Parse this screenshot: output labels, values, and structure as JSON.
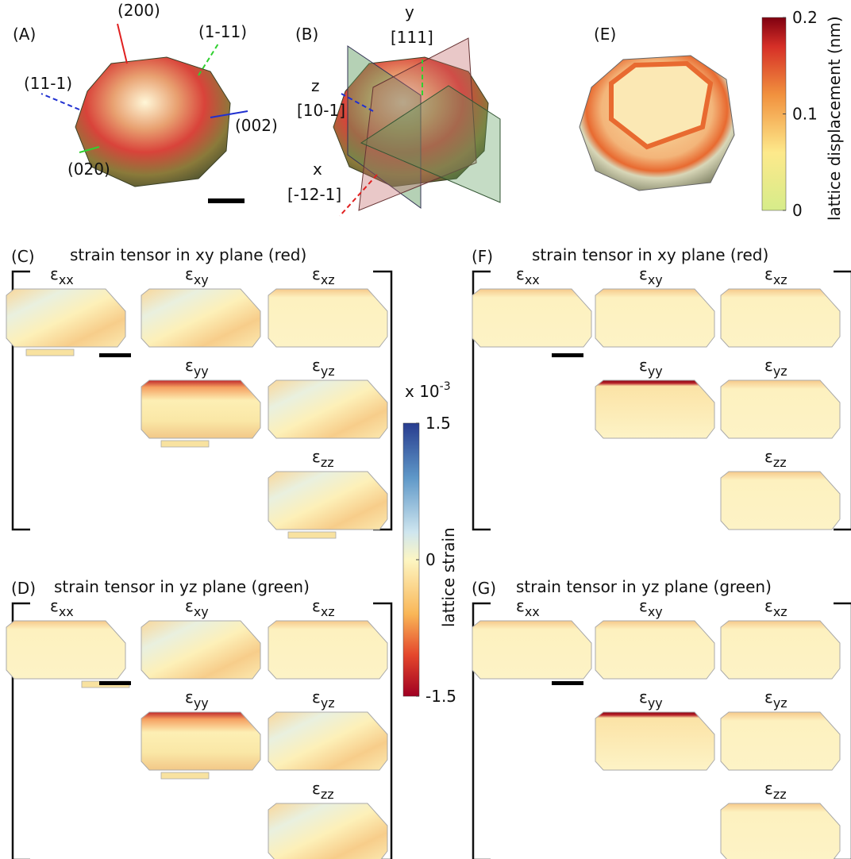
{
  "panel_a": {
    "label": "(A)",
    "axes": [
      "(200)",
      "(1-11)",
      "(11-1)",
      "(002)",
      "(020)"
    ]
  },
  "panel_b": {
    "label": "(B)",
    "axes": [
      {
        "name": "y",
        "direction": "[111]"
      },
      {
        "name": "z",
        "direction": "[10-1]"
      },
      {
        "name": "x",
        "direction": "[-12-1]"
      }
    ]
  },
  "panel_e": {
    "label": "(E)"
  },
  "displacement_colorbar": {
    "title": "lattice displacement (nm)",
    "range": [
      0,
      0.2
    ],
    "ticks": [
      0,
      0.1,
      0.2
    ]
  },
  "strain_colorbar": {
    "multiplier": "x 10",
    "exponent": "-3",
    "title": "lattice strain",
    "range": [
      -1.5,
      1.5
    ],
    "ticks": [
      1.5,
      0,
      -1.5
    ]
  },
  "symbol": "ε",
  "strain_panels": [
    {
      "label": "(C)",
      "title": "strain tensor in xy plane (red)",
      "components": [
        "xx",
        "xy",
        "xz",
        "yy",
        "yz",
        "zz"
      ]
    },
    {
      "label": "(F)",
      "title": "strain tensor in xy plane (red)",
      "components": [
        "xx",
        "xy",
        "xz",
        "yy",
        "yz",
        "zz"
      ]
    },
    {
      "label": "(D)",
      "title": "strain tensor in yz plane (green)",
      "components": [
        "xx",
        "xy",
        "xz",
        "yy",
        "yz",
        "zz"
      ]
    },
    {
      "label": "(G)",
      "title": "strain tensor in yz plane (green)",
      "components": [
        "xx",
        "xy",
        "xz",
        "yy",
        "yz",
        "zz"
      ]
    }
  ]
}
